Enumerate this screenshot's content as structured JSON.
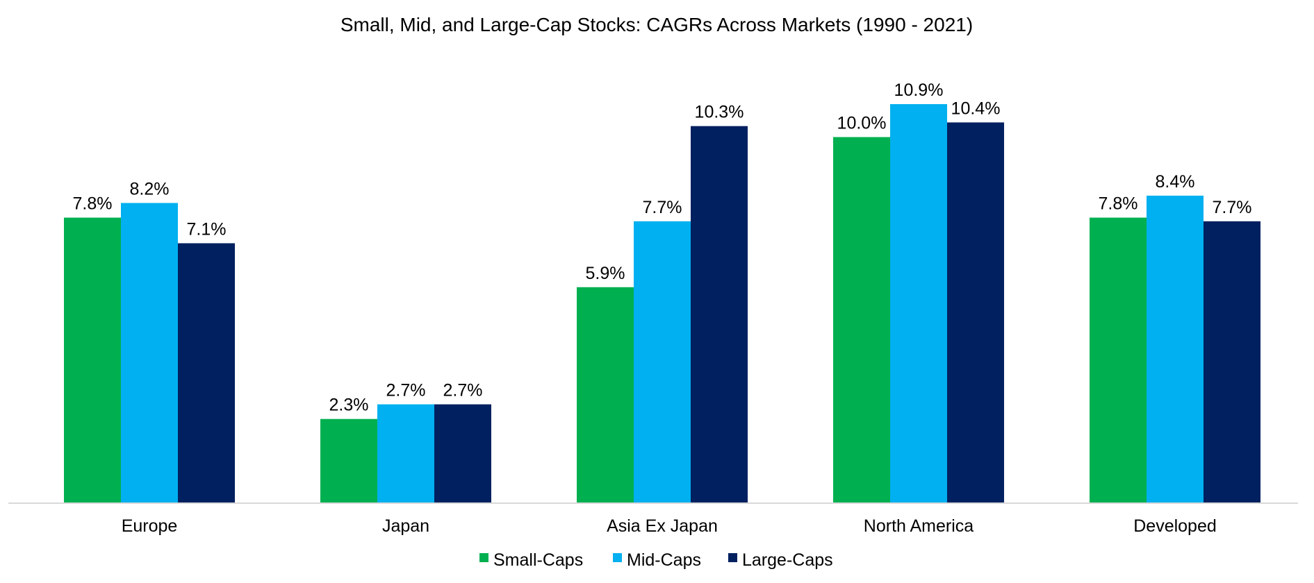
{
  "chart_data": {
    "type": "bar",
    "title": "Small, Mid, and Large-Cap Stocks: CAGRs Across Markets (1990 - 2021)",
    "xlabel": "",
    "ylabel": "",
    "ylim": [
      0,
      12
    ],
    "grid": false,
    "legend_position": "bottom",
    "value_suffix": "%",
    "categories": [
      "Europe",
      "Japan",
      "Asia Ex Japan",
      "North America",
      "Developed"
    ],
    "series": [
      {
        "name": "Small-Caps",
        "color": "#00B050",
        "values": [
          7.8,
          2.3,
          5.9,
          10.0,
          7.8
        ]
      },
      {
        "name": "Mid-Caps",
        "color": "#00B0F0",
        "values": [
          8.2,
          2.7,
          7.7,
          10.9,
          8.4
        ]
      },
      {
        "name": "Large-Caps",
        "color": "#002060",
        "values": [
          7.1,
          2.7,
          10.3,
          10.4,
          7.7
        ]
      }
    ],
    "axis_color": "#D9D9D9"
  }
}
